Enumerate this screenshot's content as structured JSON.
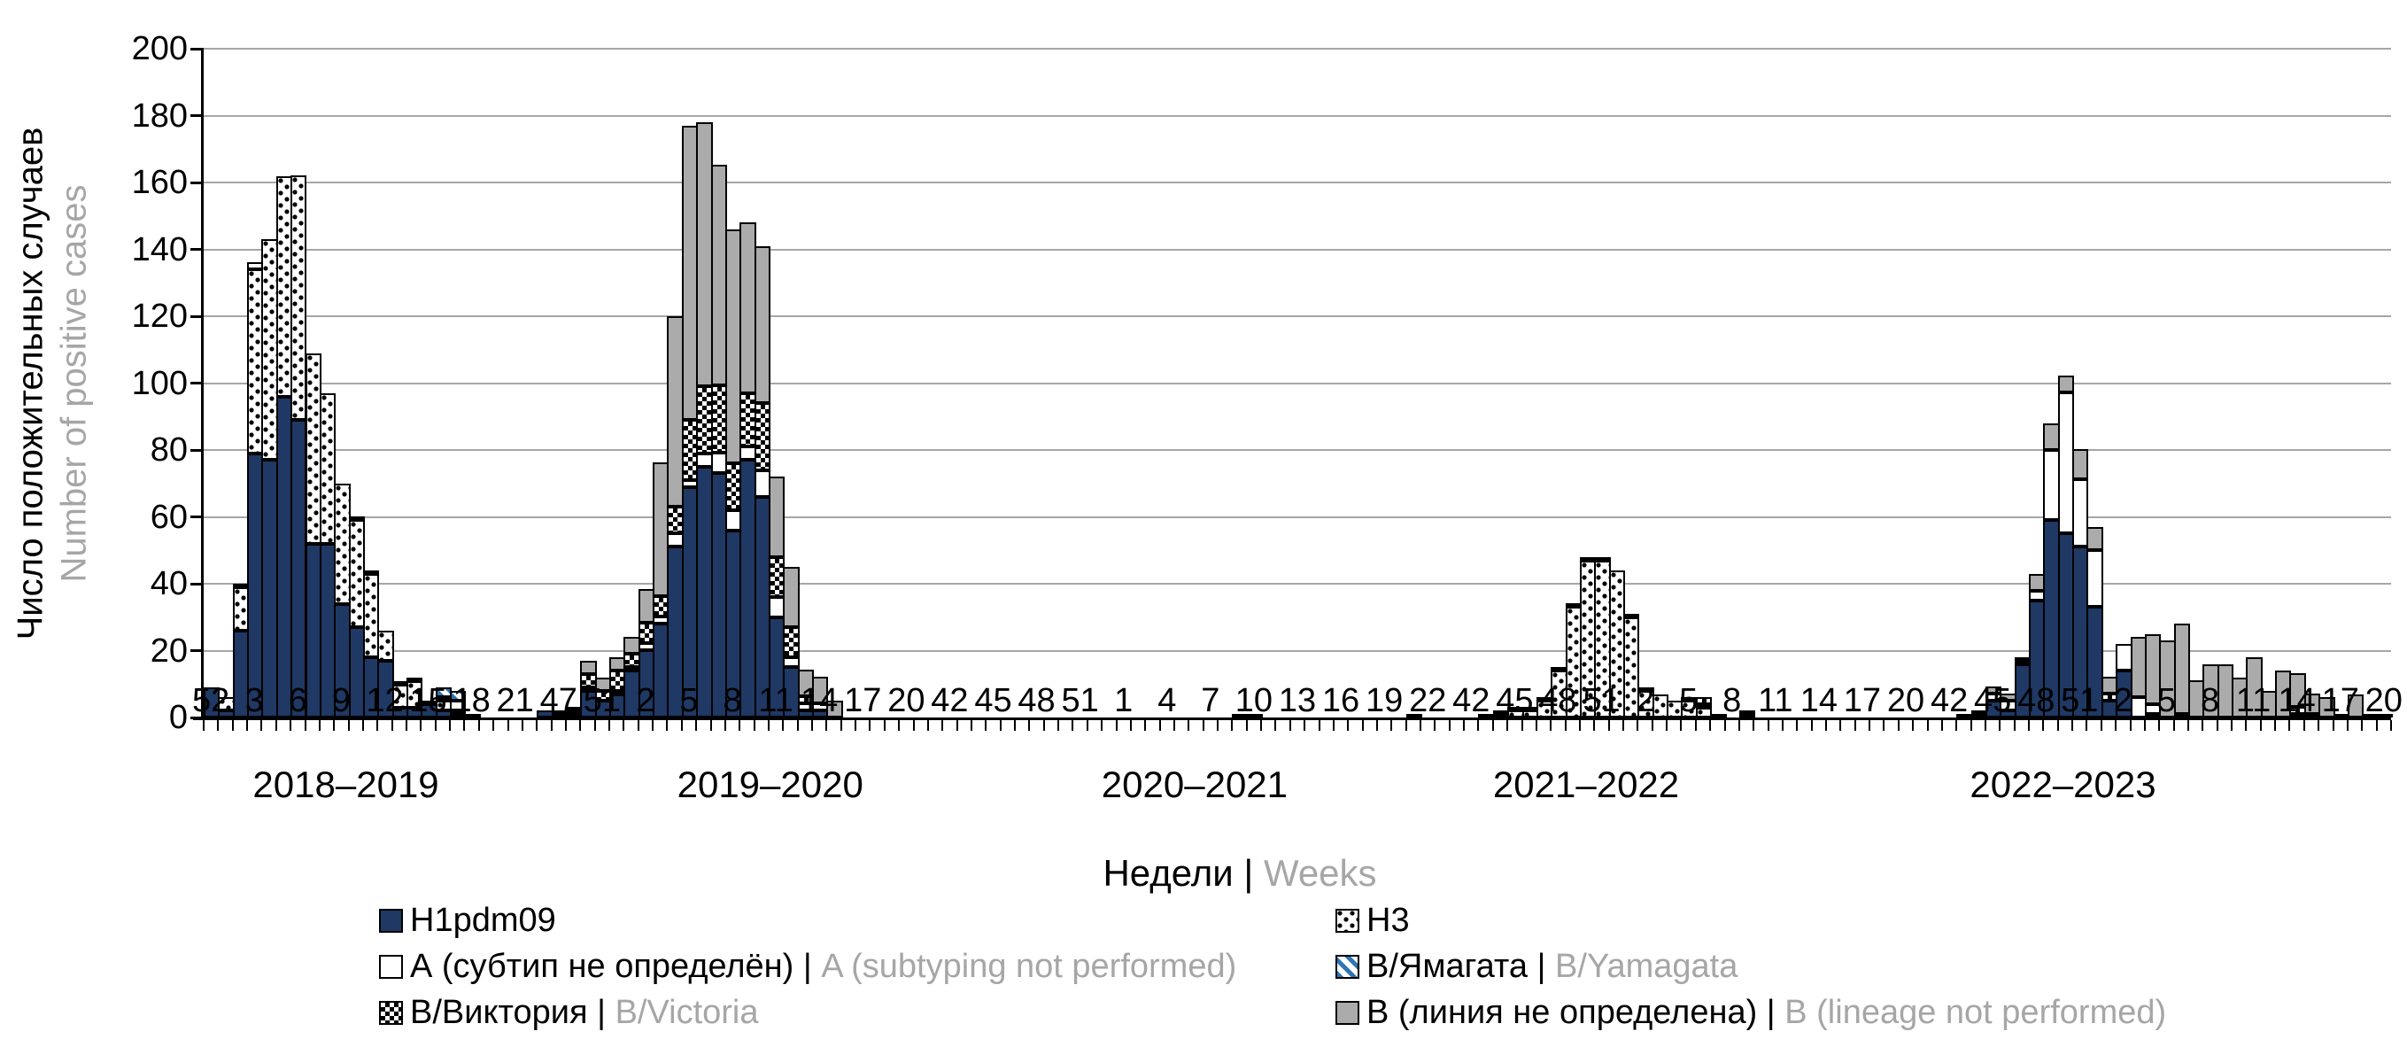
{
  "chart_data": {
    "type": "bar",
    "stacked": true,
    "title": "",
    "ylabel_ru": "Число положительных случаев",
    "ylabel_en": "Number of positive cases",
    "xlabel_ru": "Недели",
    "xlabel_separator": " | ",
    "xlabel_en": "Weeks",
    "ylim": [
      0,
      200
    ],
    "ytick_step": 20,
    "ytick_labels": [
      "0",
      "20",
      "40",
      "60",
      "80",
      "100",
      "120",
      "140",
      "160",
      "180",
      "200"
    ],
    "grid": "horizontal-gray",
    "legend_position": "bottom-two-columns",
    "xtick_every_n_bars": 3,
    "xtick_labels": [
      "52",
      "3",
      "6",
      "9",
      "12",
      "15",
      "18",
      "21",
      "47",
      "51",
      "2",
      "5",
      "8",
      "11",
      "14",
      "17",
      "20",
      "42",
      "45",
      "48",
      "51",
      "1",
      "4",
      "7",
      "10",
      "13",
      "16",
      "19",
      "22",
      "42",
      "45",
      "48",
      "51",
      "2",
      "5",
      "8",
      "11",
      "14",
      "17",
      "20",
      "42",
      "45",
      "48",
      "51",
      "2",
      "5",
      "8",
      "11",
      "14",
      "17",
      "20"
    ],
    "seasons": [
      {
        "label": "2018–2019",
        "center_pct": 6.5
      },
      {
        "label": "2019–2020",
        "center_pct": 25.9
      },
      {
        "label": "2020–2021",
        "center_pct": 45.3
      },
      {
        "label": "2021–2022",
        "center_pct": 63.2
      },
      {
        "label": "2022–2023",
        "center_pct": 85.0
      }
    ],
    "series_order": [
      "H1pdm09",
      "H3",
      "A (subtyping not performed)",
      "B/Yamagata",
      "B/Victoria",
      "B (lineage not performed)"
    ],
    "series_patterns": [
      "pat-h1",
      "pat-h3",
      "pat-a",
      "pat-byam",
      "pat-bvic",
      "pat-b"
    ],
    "bars": [
      [
        9,
        0,
        0,
        0,
        0,
        0
      ],
      [
        2,
        4,
        0,
        0,
        0,
        0
      ],
      [
        26,
        13,
        1,
        0,
        0,
        0
      ],
      [
        79,
        55,
        2,
        0,
        0,
        0
      ],
      [
        77,
        66,
        0,
        0,
        0,
        0
      ],
      [
        96,
        66,
        0,
        0,
        0,
        0
      ],
      [
        89,
        73,
        0,
        0,
        0,
        0
      ],
      [
        52,
        57,
        0,
        0,
        0,
        0
      ],
      [
        52,
        45,
        0,
        0,
        0,
        0
      ],
      [
        34,
        36,
        0,
        0,
        0,
        0
      ],
      [
        27,
        32,
        1,
        0,
        0,
        0
      ],
      [
        18,
        25,
        1,
        0,
        0,
        0
      ],
      [
        17,
        9,
        0,
        0,
        0,
        0
      ],
      [
        3,
        7,
        1,
        0,
        0,
        0
      ],
      [
        3,
        8,
        1,
        0,
        0,
        0
      ],
      [
        4,
        1,
        0,
        0,
        0,
        0
      ],
      [
        2,
        3,
        1,
        3,
        0,
        0
      ],
      [
        1,
        1,
        3,
        3,
        0,
        0
      ],
      [
        0,
        0,
        1,
        0,
        0,
        0
      ],
      [
        0,
        0,
        0,
        0,
        0,
        0
      ],
      [
        0,
        0,
        0,
        0,
        0,
        0
      ],
      [
        0,
        0,
        0,
        0,
        0,
        0
      ],
      [
        0,
        0,
        0,
        0,
        0,
        0
      ],
      [
        2,
        0,
        0,
        0,
        0,
        0
      ],
      [
        1,
        0,
        1,
        0,
        0,
        0
      ],
      [
        1,
        0,
        1,
        0,
        0,
        1
      ],
      [
        8,
        0,
        1,
        0,
        4,
        4
      ],
      [
        5,
        0,
        0,
        0,
        3,
        4
      ],
      [
        7,
        0,
        1,
        0,
        6,
        4
      ],
      [
        14,
        0,
        1,
        0,
        4,
        5
      ],
      [
        20,
        0,
        2,
        0,
        6,
        10
      ],
      [
        28,
        0,
        2,
        0,
        6,
        40
      ],
      [
        51,
        0,
        4,
        0,
        8,
        57
      ],
      [
        69,
        0,
        2,
        0,
        18,
        88
      ],
      [
        75,
        0,
        4,
        0,
        20,
        79
      ],
      [
        73,
        0,
        6,
        0,
        20,
        66
      ],
      [
        56,
        0,
        6,
        0,
        14,
        70
      ],
      [
        77,
        0,
        4,
        0,
        16,
        51
      ],
      [
        66,
        0,
        8,
        0,
        20,
        47
      ],
      [
        30,
        0,
        6,
        0,
        12,
        24
      ],
      [
        15,
        0,
        3,
        0,
        9,
        18
      ],
      [
        2,
        0,
        2,
        0,
        2,
        8
      ],
      [
        2,
        0,
        2,
        0,
        0,
        8
      ],
      [
        0,
        0,
        0,
        0,
        0,
        5
      ],
      [
        0,
        0,
        0,
        0,
        0,
        0
      ],
      [
        0,
        0,
        0,
        0,
        0,
        0
      ],
      [
        0,
        0,
        0,
        0,
        0,
        0
      ],
      [
        0,
        0,
        0,
        0,
        0,
        0
      ],
      [
        0,
        0,
        0,
        0,
        0,
        0
      ],
      [
        0,
        0,
        0,
        0,
        0,
        0
      ],
      [
        0,
        0,
        0,
        0,
        0,
        0
      ],
      [
        0,
        0,
        0,
        0,
        0,
        0
      ],
      [
        0,
        0,
        0,
        0,
        0,
        0
      ],
      [
        0,
        0,
        0,
        0,
        0,
        0
      ],
      [
        0,
        0,
        0,
        0,
        0,
        0
      ],
      [
        0,
        0,
        0,
        0,
        0,
        0
      ],
      [
        0,
        0,
        0,
        0,
        0,
        0
      ],
      [
        0,
        0,
        0,
        0,
        0,
        0
      ],
      [
        0,
        0,
        0,
        0,
        0,
        0
      ],
      [
        0,
        0,
        0,
        0,
        0,
        0
      ],
      [
        0,
        0,
        0,
        0,
        0,
        0
      ],
      [
        0,
        0,
        0,
        0,
        0,
        0
      ],
      [
        0,
        0,
        0,
        0,
        0,
        0
      ],
      [
        0,
        0,
        0,
        0,
        0,
        0
      ],
      [
        0,
        0,
        0,
        0,
        0,
        0
      ],
      [
        0,
        0,
        0,
        0,
        0,
        0
      ],
      [
        0,
        0,
        0,
        0,
        0,
        0
      ],
      [
        0,
        0,
        0,
        0,
        0,
        0
      ],
      [
        0,
        0,
        0,
        0,
        0,
        0
      ],
      [
        0,
        0,
        0,
        0,
        0,
        0
      ],
      [
        0,
        0,
        0,
        0,
        0,
        0
      ],
      [
        0,
        0,
        1,
        0,
        0,
        0
      ],
      [
        0,
        0,
        1,
        0,
        0,
        0
      ],
      [
        0,
        0,
        0,
        0,
        0,
        0
      ],
      [
        0,
        0,
        0,
        0,
        0,
        0
      ],
      [
        0,
        0,
        0,
        0,
        0,
        0
      ],
      [
        0,
        0,
        0,
        0,
        0,
        0
      ],
      [
        0,
        0,
        0,
        0,
        0,
        0
      ],
      [
        0,
        0,
        0,
        0,
        0,
        0
      ],
      [
        0,
        0,
        0,
        0,
        0,
        0
      ],
      [
        0,
        0,
        0,
        0,
        0,
        0
      ],
      [
        0,
        0,
        0,
        0,
        0,
        0
      ],
      [
        0,
        0,
        0,
        0,
        0,
        0
      ],
      [
        1,
        0,
        0,
        0,
        0,
        0
      ],
      [
        0,
        0,
        0,
        0,
        0,
        0
      ],
      [
        0,
        0,
        0,
        0,
        0,
        0
      ],
      [
        0,
        0,
        0,
        0,
        0,
        0
      ],
      [
        0,
        0,
        0,
        0,
        0,
        0
      ],
      [
        0,
        0,
        1,
        0,
        0,
        0
      ],
      [
        0,
        1,
        1,
        0,
        0,
        0
      ],
      [
        0,
        2,
        1,
        0,
        0,
        0
      ],
      [
        0,
        2,
        1,
        0,
        0,
        0
      ],
      [
        0,
        5,
        1,
        0,
        0,
        0
      ],
      [
        0,
        14,
        1,
        0,
        0,
        0
      ],
      [
        0,
        33,
        1,
        0,
        0,
        0
      ],
      [
        0,
        47,
        1,
        0,
        0,
        0
      ],
      [
        0,
        47,
        1,
        0,
        0,
        0
      ],
      [
        0,
        44,
        0,
        0,
        0,
        0
      ],
      [
        0,
        30,
        1,
        0,
        0,
        0
      ],
      [
        0,
        8,
        1,
        0,
        0,
        0
      ],
      [
        0,
        7,
        0,
        0,
        0,
        0
      ],
      [
        0,
        5,
        0,
        0,
        0,
        0
      ],
      [
        0,
        5,
        1,
        0,
        0,
        0
      ],
      [
        0,
        3,
        1,
        0,
        2,
        0
      ],
      [
        0,
        1,
        0,
        0,
        0,
        0
      ],
      [
        0,
        0,
        0,
        0,
        0,
        0
      ],
      [
        0,
        0,
        1,
        0,
        1,
        0
      ],
      [
        0,
        0,
        0,
        0,
        0,
        0
      ],
      [
        0,
        0,
        0,
        0,
        0,
        0
      ],
      [
        0,
        0,
        0,
        0,
        0,
        0
      ],
      [
        0,
        0,
        0,
        0,
        0,
        0
      ],
      [
        0,
        0,
        0,
        0,
        0,
        0
      ],
      [
        0,
        0,
        0,
        0,
        0,
        0
      ],
      [
        0,
        0,
        0,
        0,
        0,
        0
      ],
      [
        0,
        0,
        0,
        0,
        0,
        0
      ],
      [
        0,
        0,
        0,
        0,
        0,
        0
      ],
      [
        0,
        0,
        0,
        0,
        0,
        0
      ],
      [
        0,
        0,
        0,
        0,
        0,
        0
      ],
      [
        0,
        0,
        0,
        0,
        0,
        0
      ],
      [
        0,
        0,
        0,
        0,
        0,
        0
      ],
      [
        0,
        0,
        0,
        0,
        0,
        0
      ],
      [
        0,
        0,
        1,
        0,
        0,
        0
      ],
      [
        1,
        0,
        1,
        0,
        0,
        0
      ],
      [
        5,
        0,
        2,
        0,
        0,
        2
      ],
      [
        2,
        0,
        3,
        0,
        0,
        2
      ],
      [
        16,
        0,
        1,
        0,
        0,
        1
      ],
      [
        35,
        0,
        3,
        0,
        0,
        5
      ],
      [
        59,
        0,
        21,
        0,
        0,
        8
      ],
      [
        55,
        0,
        42,
        0,
        0,
        5
      ],
      [
        51,
        0,
        20,
        0,
        0,
        9
      ],
      [
        33,
        0,
        17,
        0,
        0,
        7
      ],
      [
        5,
        0,
        0,
        0,
        2,
        5
      ],
      [
        14,
        0,
        8,
        0,
        0,
        0
      ],
      [
        0,
        0,
        6,
        0,
        0,
        18
      ],
      [
        1,
        0,
        3,
        0,
        0,
        21
      ],
      [
        0,
        0,
        0,
        0,
        0,
        23
      ],
      [
        0,
        0,
        1,
        0,
        0,
        27
      ],
      [
        0,
        0,
        0,
        0,
        0,
        11
      ],
      [
        0,
        0,
        0,
        0,
        0,
        16
      ],
      [
        0,
        0,
        0,
        0,
        0,
        16
      ],
      [
        0,
        0,
        0,
        0,
        0,
        12
      ],
      [
        0,
        0,
        0,
        0,
        0,
        18
      ],
      [
        0,
        0,
        0,
        0,
        0,
        8
      ],
      [
        0,
        0,
        0,
        0,
        0,
        14
      ],
      [
        0,
        0,
        1,
        0,
        2,
        10
      ],
      [
        0,
        0,
        1,
        0,
        0,
        6
      ],
      [
        0,
        0,
        0,
        0,
        0,
        6
      ],
      [
        0,
        0,
        0,
        0,
        0,
        1
      ],
      [
        0,
        0,
        0,
        0,
        0,
        7
      ],
      [
        0,
        0,
        0,
        0,
        0,
        1
      ],
      [
        0,
        0,
        0,
        0,
        0,
        1
      ]
    ]
  },
  "y_axis": {
    "title_ru": "Число положительных случаев",
    "title_en": "Number of positive cases"
  },
  "x_axis": {
    "title_ru": "Недели",
    "title_sep": "|",
    "title_en": "Weeks"
  },
  "colors": {
    "h1pdm09": "#1F3864",
    "b_lineage": "#ABABAB",
    "yamagata_hatch": "#2E75B6",
    "gridline": "#A6A6A6",
    "secondary_text": "#A6A6A6",
    "text": "#000000"
  },
  "legend": {
    "items": [
      {
        "ru": "H1pdm09",
        "sep": "",
        "en": "",
        "pattern": "pat-h1"
      },
      {
        "ru": "H3",
        "sep": "",
        "en": "",
        "pattern": "pat-h3"
      },
      {
        "ru": "А (субтип не определён)",
        "sep": " | ",
        "en": "A (subtyping not performed)",
        "pattern": "pat-a"
      },
      {
        "ru": "В/Ямагата",
        "sep": " | ",
        "en": "B/Yamagata",
        "pattern": "pat-byam"
      },
      {
        "ru": "В/Виктория",
        "sep": " | ",
        "en": "B/Victoria",
        "pattern": "pat-bvic"
      },
      {
        "ru": "В (линия не определена)",
        "sep": " | ",
        "en": "B (lineage not performed)",
        "pattern": "pat-b"
      }
    ]
  }
}
